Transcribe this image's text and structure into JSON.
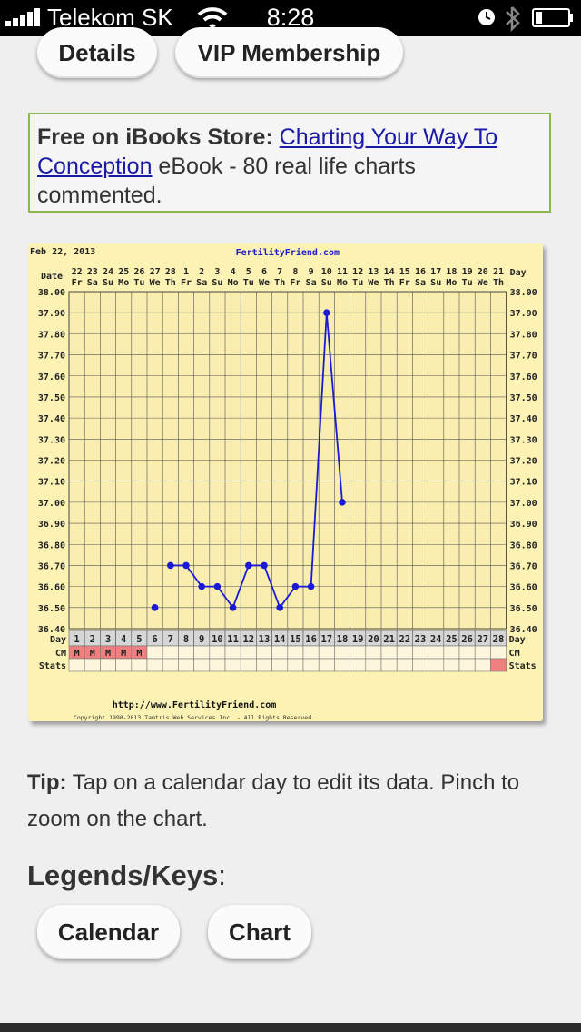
{
  "status": {
    "carrier": "Telekom SK",
    "time": "8:28"
  },
  "top_buttons": {
    "details": "Details",
    "vip": "VIP Membership"
  },
  "promo": {
    "prefix": "Free on iBooks Store:",
    "link": "Charting Your Way To Conception",
    "suffix": " eBook - 80 real life charts commented."
  },
  "chart": {
    "date_text": "Feb 22, 2013",
    "site_text": "FertilityFriend.com",
    "footer_url": "http://www.FertilityFriend.com",
    "copyright": "Copyright 1998-2013 Tamtris Web Services Inc. - All Rights Reserved.",
    "row_labels": {
      "date": "Date",
      "day": "Day",
      "cm": "CM",
      "stats": "Stats"
    },
    "colors": {
      "background": "#fbf2b4",
      "line": "#1a1ad6",
      "cm_fill": "#f08080",
      "grid": "#555555"
    }
  },
  "chart_data": {
    "type": "line",
    "dates": [
      "22",
      "23",
      "24",
      "25",
      "26",
      "27",
      "28",
      "1",
      "2",
      "3",
      "4",
      "5",
      "6",
      "7",
      "8",
      "9",
      "10",
      "11",
      "12",
      "13",
      "14",
      "15",
      "16",
      "17",
      "18",
      "19",
      "20",
      "21"
    ],
    "weekdays": [
      "Fr",
      "Sa",
      "Su",
      "Mo",
      "Tu",
      "We",
      "Th",
      "Fr",
      "Sa",
      "Su",
      "Mo",
      "Tu",
      "We",
      "Th",
      "Fr",
      "Sa",
      "Su",
      "Mo",
      "Tu",
      "We",
      "Th",
      "Fr",
      "Sa",
      "Su",
      "Mo",
      "Tu",
      "We",
      "Th"
    ],
    "cycle_days": [
      1,
      2,
      3,
      4,
      5,
      6,
      7,
      8,
      9,
      10,
      11,
      12,
      13,
      14,
      15,
      16,
      17,
      18,
      19,
      20,
      21,
      22,
      23,
      24,
      25,
      26,
      27,
      28
    ],
    "ylim": [
      36.4,
      38.0
    ],
    "y_ticks": [
      "38.00",
      "37.90",
      "37.80",
      "37.70",
      "37.60",
      "37.50",
      "37.40",
      "37.30",
      "37.20",
      "37.10",
      "37.00",
      "36.90",
      "36.80",
      "36.70",
      "36.60",
      "36.50",
      "36.40"
    ],
    "temperatures": [
      {
        "day": 6,
        "value": 36.5
      },
      {
        "day": 7,
        "value": 36.7
      },
      {
        "day": 8,
        "value": 36.7
      },
      {
        "day": 9,
        "value": 36.6
      },
      {
        "day": 10,
        "value": 36.6
      },
      {
        "day": 11,
        "value": 36.5
      },
      {
        "day": 12,
        "value": 36.7
      },
      {
        "day": 13,
        "value": 36.7
      },
      {
        "day": 14,
        "value": 36.5
      },
      {
        "day": 15,
        "value": 36.6
      },
      {
        "day": 16,
        "value": 36.6
      },
      {
        "day": 17,
        "value": 37.9
      },
      {
        "day": 18,
        "value": 37.0
      }
    ],
    "line_breaks_after_day": [
      6
    ],
    "cm_days": [
      1,
      2,
      3,
      4,
      5
    ],
    "cm_value": "M",
    "stats_highlight_day": 28,
    "grid": true
  },
  "tip": {
    "label": "Tip:",
    "text": " Tap on a calendar day to edit its data. Pinch to zoom on the chart."
  },
  "legends": {
    "title": "Legends/Keys",
    "colon": ":",
    "calendar": "Calendar",
    "chart": "Chart"
  }
}
